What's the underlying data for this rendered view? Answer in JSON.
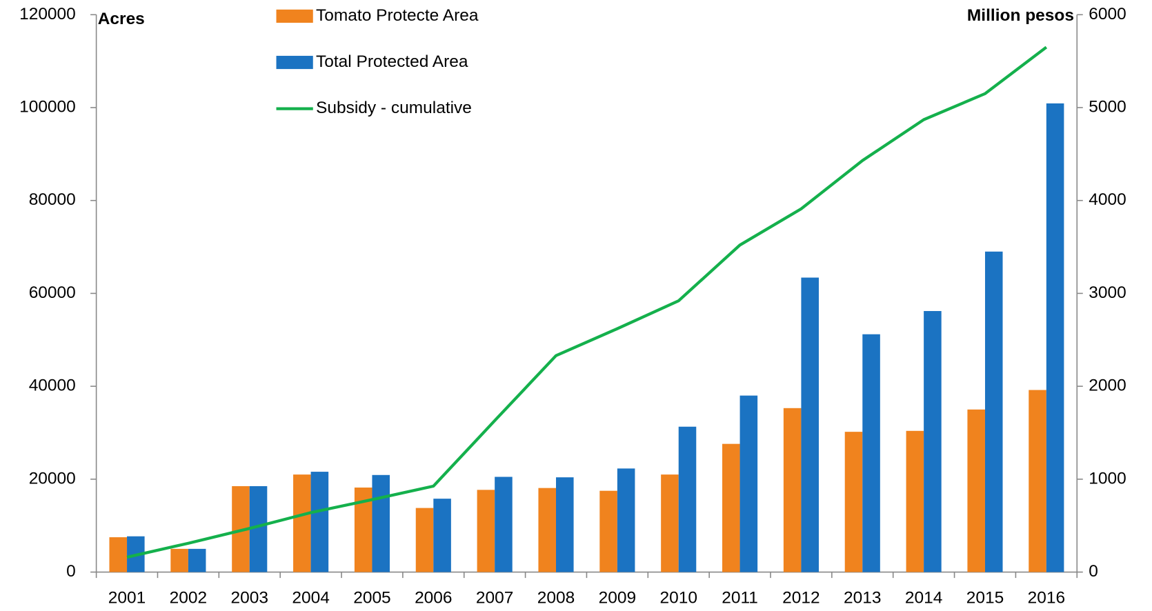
{
  "chart_data": {
    "type": "bar_line",
    "y_label": "Acres",
    "y2_label": "Million pesos",
    "categories": [
      "2001",
      "2002",
      "2003",
      "2004",
      "2005",
      "2006",
      "2007",
      "2008",
      "2009",
      "2010",
      "2011",
      "2012",
      "2013",
      "2014",
      "2015",
      "2016"
    ],
    "series": [
      {
        "name": "Tomato Protecte Area",
        "color": "#f0831e",
        "type": "bar",
        "values": [
          7500,
          5000,
          18500,
          21000,
          18200,
          13800,
          17700,
          18100,
          17500,
          21000,
          27600,
          35300,
          30200,
          30400,
          35000,
          39200
        ]
      },
      {
        "name": "Total Protected Area",
        "color": "#1b73c2",
        "type": "bar",
        "values": [
          7700,
          5000,
          18500,
          21600,
          20900,
          15800,
          20500,
          20400,
          22300,
          31300,
          38000,
          63400,
          51200,
          56200,
          69000,
          100900
        ]
      },
      {
        "name": "Subsidy - cumulative",
        "color": "#14b04c",
        "type": "line",
        "axis": "y2",
        "values": [
          160,
          310,
          470,
          640,
          780,
          925,
          1630,
          2330,
          2620,
          2920,
          3520,
          3910,
          4430,
          4870,
          5150,
          5650
        ]
      }
    ],
    "ylim": [
      0,
      120000
    ],
    "yticks": [
      0,
      20000,
      40000,
      60000,
      80000,
      100000,
      120000
    ],
    "y2lim": [
      0,
      6000
    ],
    "y2ticks": [
      0,
      1000,
      2000,
      3000,
      4000,
      5000,
      6000
    ],
    "grid": false
  }
}
